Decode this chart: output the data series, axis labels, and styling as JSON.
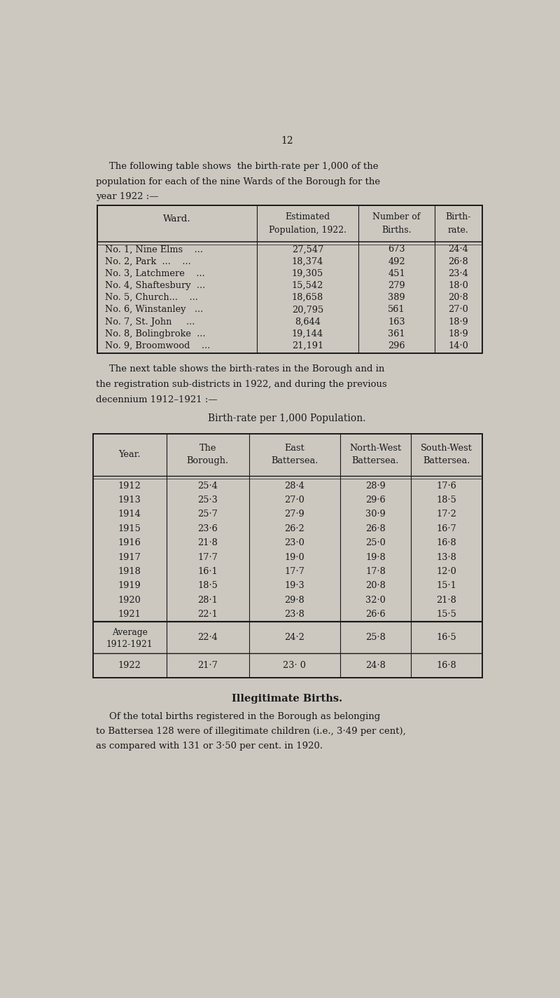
{
  "page_number": "12",
  "bg_color": "#ccc8c0",
  "text_color": "#1a1a1a",
  "table1_headers_row1": [
    "Ward.",
    "Estimated",
    "Number of",
    "Birth-"
  ],
  "table1_headers_row2": [
    "",
    "Population, 1922.",
    "Births.",
    "rate."
  ],
  "table1_rows": [
    [
      "No. 1, Nine Elms    ...",
      "27,547",
      "673",
      "24·4"
    ],
    [
      "No. 2, Park  ...    ...",
      "18,374",
      "492",
      "26·8"
    ],
    [
      "No. 3, Latchmere    ...",
      "19,305",
      "451",
      "23·4"
    ],
    [
      "No. 4, Shaftesbury  ...",
      "15,542",
      "279",
      "18·0"
    ],
    [
      "No. 5, Church...    ...",
      "18,658",
      "389",
      "20·8"
    ],
    [
      "No. 6, Winstanley   ...",
      "20,795",
      "561",
      "27·0"
    ],
    [
      "No. 7, St. John     ...",
      "8,644",
      "163",
      "18·9"
    ],
    [
      "No. 8, Bolingbroke  ...",
      "19,144",
      "361",
      "18·9"
    ],
    [
      "No. 9, Broomwood    ...",
      "21,191",
      "296",
      "14·0"
    ]
  ],
  "table2_title": "Birth-rate per 1,000 Population.",
  "table2_headers": [
    [
      "Year.",
      "The\nBorough.",
      "East\nBattersea.",
      "North-West\nBattersea.",
      "South-West\nBattersea."
    ]
  ],
  "table2_rows": [
    [
      "1912",
      "25·4",
      "28·4",
      "28·9",
      "17·6"
    ],
    [
      "1913",
      "25·3",
      "27·0",
      "29·6",
      "18·5"
    ],
    [
      "1914",
      "25·7",
      "27·9",
      "30·9",
      "17·2"
    ],
    [
      "1915",
      "23·6",
      "26·2",
      "26·8",
      "16·7"
    ],
    [
      "1916",
      "21·8",
      "23·0",
      "25·0",
      "16·8"
    ],
    [
      "1917",
      "17·7",
      "19·0",
      "19·8",
      "13·8"
    ],
    [
      "1918",
      "16·1",
      "17·7",
      "17·8",
      "12·0"
    ],
    [
      "1919",
      "18·5",
      "19·3",
      "20·8",
      "15·1"
    ],
    [
      "1920",
      "28·1",
      "29·8",
      "32·0",
      "21·8"
    ],
    [
      "1921",
      "22·1",
      "23·8",
      "26·6",
      "15·5"
    ]
  ],
  "table2_avg_row": [
    "Average\n1912-1921",
    "22·4",
    "24·2",
    "25·8",
    "16·5"
  ],
  "table2_1922_row": [
    "1922",
    "21·7",
    "23· 0",
    "24·8",
    "16·8"
  ],
  "illegitimate_title": "Illegitimate Births.",
  "illegitimate_lines": [
    "Of the total births registered in the Borough as belonging",
    "to Battersea 128 were of illegitimate children (i.e., 3·49 per cent),",
    "as compared with 131 or 3·50 per cent. in 1920."
  ]
}
